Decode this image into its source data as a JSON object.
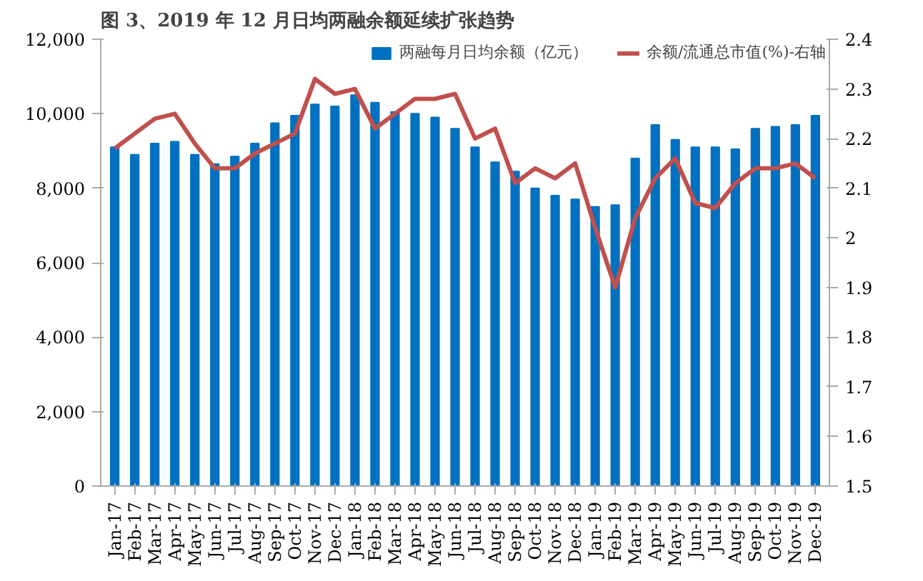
{
  "chart_data": {
    "type": "bar",
    "title": "图 3、2019 年 12 月日均两融余额延续扩张趋势",
    "categories": [
      "Jan-17",
      "Feb-17",
      "Mar-17",
      "Apr-17",
      "May-17",
      "Jun-17",
      "Jul-17",
      "Aug-17",
      "Sep-17",
      "Oct-17",
      "Nov-17",
      "Dec-17",
      "Jan-18",
      "Feb-18",
      "Mar-18",
      "Apr-18",
      "May-18",
      "Jun-18",
      "Jul-18",
      "Aug-18",
      "Sep-18",
      "Oct-18",
      "Nov-18",
      "Dec-18",
      "Jan-19",
      "Feb-19",
      "Mar-19",
      "Apr-19",
      "May-19",
      "Jun-19",
      "Jul-19",
      "Aug-19",
      "Sep-19",
      "Oct-19",
      "Nov-19",
      "Dec-19"
    ],
    "series": [
      {
        "name": "两融每月日均余额（亿元）",
        "color": "#0070c0",
        "values": [
          9100,
          8900,
          9200,
          9250,
          8900,
          8650,
          8850,
          9200,
          9750,
          9950,
          10250,
          10200,
          10500,
          10300,
          10050,
          10000,
          9900,
          9600,
          9100,
          8700,
          8450,
          8000,
          7800,
          7700,
          7500,
          7550,
          8800,
          9700,
          9300,
          9100,
          9100,
          9050,
          9600,
          9650,
          9700,
          9950
        ]
      },
      {
        "name": "余额/流通总市值(%)-右轴",
        "type": "line",
        "axis": "y2",
        "color": "#c0504d",
        "values": [
          2.18,
          2.21,
          2.24,
          2.25,
          2.19,
          2.14,
          2.14,
          2.17,
          2.19,
          2.21,
          2.32,
          2.29,
          2.3,
          2.22,
          2.25,
          2.28,
          2.28,
          2.29,
          2.2,
          2.22,
          2.11,
          2.14,
          2.12,
          2.15,
          2.02,
          1.9,
          2.04,
          2.12,
          2.16,
          2.07,
          2.06,
          2.11,
          2.14,
          2.14,
          2.15,
          2.12
        ]
      }
    ],
    "ylim": [
      0,
      12000
    ],
    "yticks": [
      {
        "value": 0,
        "label": "0"
      },
      {
        "value": 2000,
        "label": "2,000"
      },
      {
        "value": 4000,
        "label": "4,000"
      },
      {
        "value": 6000,
        "label": "6,000"
      },
      {
        "value": 8000,
        "label": "8,000"
      },
      {
        "value": 10000,
        "label": "10,000"
      },
      {
        "value": 12000,
        "label": "12,000"
      }
    ],
    "y2lim": [
      1.5,
      2.4
    ],
    "y2ticks": [
      1.5,
      1.6,
      1.7,
      1.8,
      1.9,
      2,
      2.1,
      2.2,
      2.3,
      2.4
    ],
    "grid": false,
    "legend": "top",
    "line_style": "solid",
    "marker": "none"
  }
}
